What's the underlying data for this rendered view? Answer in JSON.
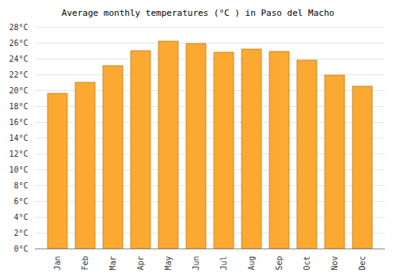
{
  "chart_data": {
    "type": "bar",
    "title": "Average monthly temperatures (°C ) in Paso del Macho",
    "categories": [
      "Jan",
      "Feb",
      "Mar",
      "Apr",
      "May",
      "Jun",
      "Jul",
      "Aug",
      "Sep",
      "Oct",
      "Nov",
      "Dec"
    ],
    "values": [
      19.6,
      21.0,
      23.1,
      25.0,
      26.2,
      25.9,
      24.8,
      25.2,
      24.9,
      23.8,
      21.9,
      20.5
    ],
    "color": "#fba931",
    "ylim": [
      0,
      28
    ],
    "yticks": [
      {
        "value": 0,
        "label": "0°C"
      },
      {
        "value": 2,
        "label": "2°C"
      },
      {
        "value": 4,
        "label": "4°C"
      },
      {
        "value": 6,
        "label": "6°C"
      },
      {
        "value": 8,
        "label": "8°C"
      },
      {
        "value": 10,
        "label": "10°C"
      },
      {
        "value": 12,
        "label": "12°C"
      },
      {
        "value": 14,
        "label": "14°C"
      },
      {
        "value": 16,
        "label": "16°C"
      },
      {
        "value": 18,
        "label": "18°C"
      },
      {
        "value": 20,
        "label": "20°C"
      },
      {
        "value": 22,
        "label": "22°C"
      },
      {
        "value": 24,
        "label": "24°C"
      },
      {
        "value": 26,
        "label": "26°C"
      },
      {
        "value": 28,
        "label": "28°C"
      }
    ],
    "grid": true
  }
}
